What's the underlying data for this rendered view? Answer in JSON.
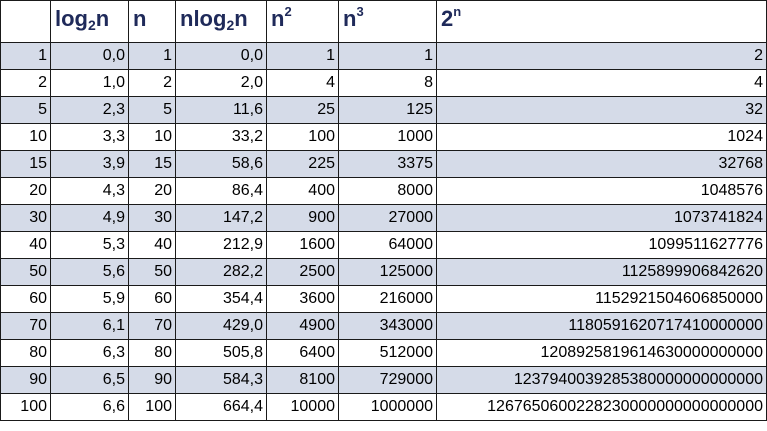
{
  "headers": [
    {
      "base": "",
      "sub": "",
      "post": "",
      "sup": ""
    },
    {
      "base": "log",
      "sub": "2",
      "post": "n",
      "sup": ""
    },
    {
      "base": "n",
      "sub": "",
      "post": "",
      "sup": ""
    },
    {
      "base": "nlog",
      "sub": "2",
      "post": "n",
      "sup": ""
    },
    {
      "base": "n",
      "sub": "",
      "post": "",
      "sup": "2"
    },
    {
      "base": "n",
      "sub": "",
      "post": "",
      "sup": "3"
    },
    {
      "base": "2",
      "sub": "",
      "post": "",
      "sup": "n"
    }
  ],
  "rows": [
    [
      "1",
      "0,0",
      "1",
      "0,0",
      "1",
      "1",
      "2"
    ],
    [
      "2",
      "1,0",
      "2",
      "2,0",
      "4",
      "8",
      "4"
    ],
    [
      "5",
      "2,3",
      "5",
      "11,6",
      "25",
      "125",
      "32"
    ],
    [
      "10",
      "3,3",
      "10",
      "33,2",
      "100",
      "1000",
      "1024"
    ],
    [
      "15",
      "3,9",
      "15",
      "58,6",
      "225",
      "3375",
      "32768"
    ],
    [
      "20",
      "4,3",
      "20",
      "86,4",
      "400",
      "8000",
      "1048576"
    ],
    [
      "30",
      "4,9",
      "30",
      "147,2",
      "900",
      "27000",
      "1073741824"
    ],
    [
      "40",
      "5,3",
      "40",
      "212,9",
      "1600",
      "64000",
      "1099511627776"
    ],
    [
      "50",
      "5,6",
      "50",
      "282,2",
      "2500",
      "125000",
      "1125899906842620"
    ],
    [
      "60",
      "5,9",
      "60",
      "354,4",
      "3600",
      "216000",
      "1152921504606850000"
    ],
    [
      "70",
      "6,1",
      "70",
      "429,0",
      "4900",
      "343000",
      "1180591620717410000000"
    ],
    [
      "80",
      "6,3",
      "80",
      "505,8",
      "6400",
      "512000",
      "1208925819614630000000000"
    ],
    [
      "90",
      "6,5",
      "90",
      "584,3",
      "8100",
      "729000",
      "1237940039285380000000000000"
    ],
    [
      "100",
      "6,6",
      "100",
      "664,4",
      "10000",
      "1000000",
      "1267650600228230000000000000000"
    ]
  ],
  "colors": {
    "header_text": "#1f2a5a",
    "band_row": "#d5dbe8",
    "plain_row": "#ffffff",
    "grid": "#1a1a1a"
  }
}
